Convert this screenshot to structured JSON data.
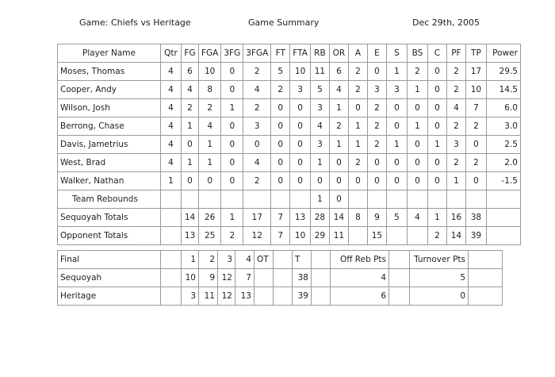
{
  "header": {
    "game": "Game: Chiefs vs Heritage",
    "title": "Game Summary",
    "date": "Dec 29th, 2005"
  },
  "stats": {
    "columns": [
      "Player Name",
      "Qtr",
      "FG",
      "FGA",
      "3FG",
      "3FGA",
      "FT",
      "FTA",
      "RB",
      "OR",
      "A",
      "E",
      "S",
      "BS",
      "C",
      "PF",
      "TP",
      "Power"
    ],
    "rows": [
      [
        "Moses, Thomas",
        "4",
        "6",
        "10",
        "0",
        "2",
        "5",
        "10",
        "11",
        "6",
        "2",
        "0",
        "1",
        "2",
        "0",
        "2",
        "17",
        "29.5"
      ],
      [
        "Cooper, Andy",
        "4",
        "4",
        "8",
        "0",
        "4",
        "2",
        "3",
        "5",
        "4",
        "2",
        "3",
        "3",
        "1",
        "0",
        "2",
        "10",
        "14.5"
      ],
      [
        "Wilson, Josh",
        "4",
        "2",
        "2",
        "1",
        "2",
        "0",
        "0",
        "3",
        "1",
        "0",
        "2",
        "0",
        "0",
        "0",
        "4",
        "7",
        "6.0"
      ],
      [
        "Berrong, Chase",
        "4",
        "1",
        "4",
        "0",
        "3",
        "0",
        "0",
        "4",
        "2",
        "1",
        "2",
        "0",
        "1",
        "0",
        "2",
        "2",
        "3.0"
      ],
      [
        "Davis, Jametrius",
        "4",
        "0",
        "1",
        "0",
        "0",
        "0",
        "0",
        "3",
        "1",
        "1",
        "2",
        "1",
        "0",
        "1",
        "3",
        "0",
        "2.5"
      ],
      [
        "West, Brad",
        "4",
        "1",
        "1",
        "0",
        "4",
        "0",
        "0",
        "1",
        "0",
        "2",
        "0",
        "0",
        "0",
        "0",
        "2",
        "2",
        "2.0"
      ],
      [
        "Walker, Nathan",
        "1",
        "0",
        "0",
        "0",
        "2",
        "0",
        "0",
        "0",
        "0",
        "0",
        "0",
        "0",
        "0",
        "0",
        "1",
        "0",
        "-1.5"
      ],
      [
        "Team Rebounds",
        "",
        "",
        "",
        "",
        "",
        "",
        "",
        "1",
        "0",
        "",
        "",
        "",
        "",
        "",
        "",
        "",
        ""
      ],
      [
        "Sequoyah Totals",
        "",
        "14",
        "26",
        "1",
        "17",
        "7",
        "13",
        "28",
        "14",
        "8",
        "9",
        "5",
        "4",
        "1",
        "16",
        "38",
        ""
      ],
      [
        "Opponent Totals",
        "",
        "13",
        "25",
        "2",
        "12",
        "7",
        "10",
        "29",
        "11",
        "",
        "15",
        "",
        "",
        "2",
        "14",
        "39",
        ""
      ]
    ]
  },
  "final": {
    "rows": [
      [
        "Final",
        "",
        "1",
        "2",
        "3",
        "4",
        "OT",
        "",
        "T",
        "",
        "",
        "",
        "Off Reb Pts",
        "",
        "",
        "",
        "Turnover Pts",
        ""
      ],
      [
        "Sequoyah",
        "",
        "10",
        "9",
        "12",
        "7",
        "",
        "",
        "38",
        "",
        "",
        "",
        "4",
        "",
        "",
        "",
        "5",
        ""
      ],
      [
        "Heritage",
        "",
        "3",
        "11",
        "12",
        "13",
        "",
        "",
        "39",
        "",
        "",
        "",
        "6",
        "",
        "",
        "",
        "0",
        ""
      ]
    ]
  }
}
